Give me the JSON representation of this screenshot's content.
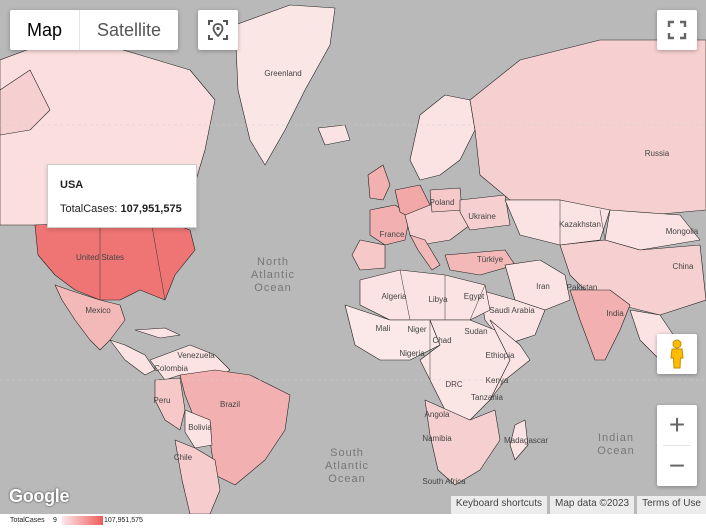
{
  "map_type": {
    "map_label": "Map",
    "satellite_label": "Satellite",
    "active": "Map"
  },
  "tooltip": {
    "country": "USA",
    "metric_label": "TotalCases:",
    "metric_value": "107,951,575"
  },
  "colors": {
    "water": "#b9b9b9",
    "land_low": "#fbe9e9",
    "land_high": "#ef5a5a",
    "border": "#222222"
  },
  "labels": {
    "greenland": "Greenland",
    "russia": "Russia",
    "kazakhstan": "Kazakhstan",
    "mongolia": "Mongolia",
    "china": "China",
    "ukraine": "Ukraine",
    "poland": "Poland",
    "france": "France",
    "turkiye": "Türkiye",
    "iran": "Iran",
    "india": "India",
    "algeria": "Algeria",
    "libya": "Libya",
    "egypt": "Egypt",
    "mali": "Mali",
    "niger": "Niger",
    "chad": "Chad",
    "sudan": "Sudan",
    "nigeria": "Nigeria",
    "ethiopia": "Ethiopia",
    "drc": "DRC",
    "kenya": "Kenya",
    "tanzania": "Tanzania",
    "angola": "Angola",
    "namibia": "Namibia",
    "south_africa": "South Africa",
    "madagascar": "Madagascar",
    "saudi_arabia": "Saudi Arabia",
    "pakistan": "Pakistan",
    "united_states": "United States",
    "mexico": "Mexico",
    "venezuela": "Venezuela",
    "colombia": "Colombia",
    "peru": "Peru",
    "brazil": "Brazil",
    "bolivia": "Bolivia",
    "chile": "Chile",
    "north_atlantic_1": "North",
    "north_atlantic_2": "Atlantic",
    "north_atlantic_3": "Ocean",
    "south_atlantic_1": "South",
    "south_atlantic_2": "Atlantic",
    "south_atlantic_3": "Ocean",
    "indian_ocean_1": "Indian",
    "indian_ocean_2": "Ocean"
  },
  "attribution": {
    "logo": "Google",
    "shortcuts": "Keyboard shortcuts",
    "map_data": "Map data ©2023",
    "terms": "Terms of Use"
  },
  "legend": {
    "title": "TotalCases",
    "min": "9",
    "max": "107,951,575"
  },
  "icons": {
    "location": "location-icon",
    "fullscreen": "fullscreen-icon",
    "pegman": "pegman-icon",
    "zoom_in": "+",
    "zoom_out": "−"
  }
}
